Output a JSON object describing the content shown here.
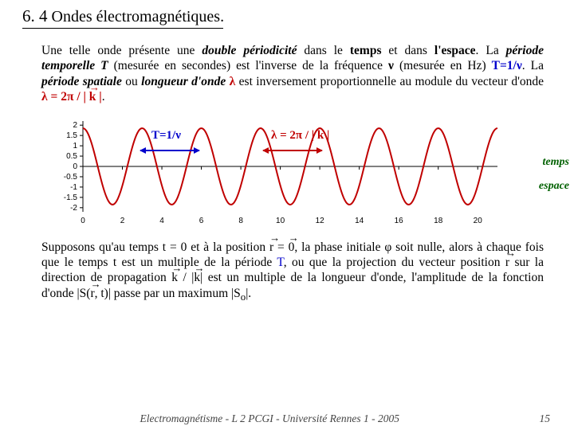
{
  "title": {
    "section": "6. 4",
    "text": "Ondes électromagnétiques."
  },
  "para1_parts": {
    "t1": "Une telle onde présente une ",
    "dbl": "double périodicité",
    "t2": " dans le ",
    "temps": "temps",
    "t3": " et dans ",
    "espace": "l'espace",
    "t4": ". La ",
    "perT": "période temporelle T",
    "t5": " (mesurée en secondes) est l'inverse de la fréquence ",
    "nu": "ν",
    "t6": " (mesurée en Hz) ",
    "eqT": "T=1/ν",
    "t7": ". La ",
    "perS": "période spatiale",
    "t8": " ou ",
    "lon": "longueur d'onde ",
    "lam": "λ",
    "t9": " est inversement proportionnelle au module du vecteur d'onde ",
    "eqL": "λ = 2π / | k |",
    "t10": "."
  },
  "formulas": {
    "left": "T=1/ν",
    "right": "λ = 2π / | k |"
  },
  "axis_right": {
    "top": "temps",
    "bottom": "espace"
  },
  "chart": {
    "bg": "#ffffff",
    "axis_color": "#000000",
    "wave_color": "#c00000",
    "line_width": 2,
    "x_min": 0,
    "x_max": 21,
    "y_min": -2.2,
    "y_max": 2.2,
    "y_ticks": [
      -2,
      -1.5,
      -1,
      -0.5,
      0,
      0.5,
      1,
      1.5,
      2
    ],
    "y_labels": [
      "-2",
      "-1.5",
      "-1",
      "-0.5",
      "0",
      "0.5",
      "1",
      "1.5",
      "2"
    ],
    "x_ticks": [
      0,
      2,
      4,
      6,
      8,
      10,
      12,
      14,
      16,
      18,
      20
    ],
    "amplitude": 1.85,
    "periods": 7,
    "period": 3.0
  },
  "para2_parts": {
    "t1": "Supposons qu'au temps t = 0 et à la position ",
    "r0": "r = 0",
    "t2": ", la phase initiale φ soit nulle, alors à chaque fois que le temps t est un multiple de la période ",
    "T": "T",
    "t3": ", ou que la projection du vecteur position ",
    "r": "r",
    "t4": " sur la direction de propagation ",
    "k": "k",
    "t5": " / |",
    "k2": "k",
    "t6": "| est un multiple de la longueur d'onde, l'amplitude de la fonction d'onde |S(",
    "r2": "r",
    "t7": ", t)| passe par un maximum |S",
    "sub0": "o",
    "t8": "|."
  },
  "footer": {
    "text": "Electromagnétisme - L 2 PCGI - Université Rennes 1 - 2005",
    "page": "15"
  }
}
